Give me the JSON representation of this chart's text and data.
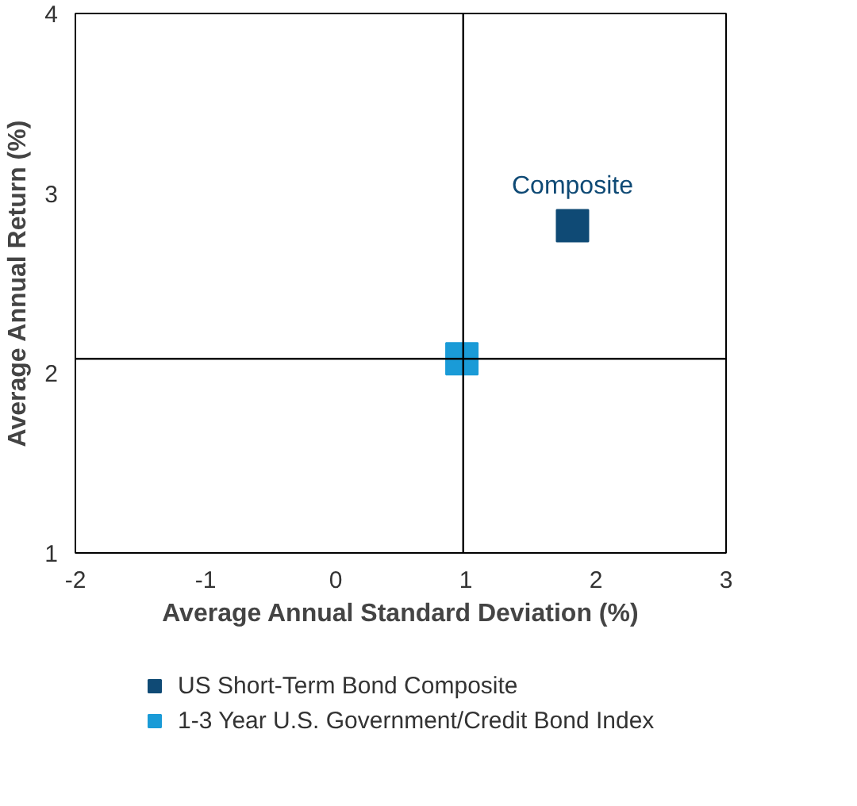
{
  "chart_data": {
    "type": "scatter",
    "xlabel": "Average Annual Standard Deviation (%)",
    "ylabel": "Average Annual Return (%)",
    "xlim": [
      -2,
      3
    ],
    "ylim": [
      1,
      4
    ],
    "xticks": [
      -2,
      -1,
      0,
      1,
      2,
      3
    ],
    "yticks": [
      1,
      2,
      3,
      4
    ],
    "series": [
      {
        "name": "US Short-Term Bond Composite",
        "color": "#0f4a75",
        "x": [
          1.82
        ],
        "values": [
          2.82
        ]
      },
      {
        "name": "1-3 Year U.S. Government/Credit Bond Index",
        "color": "#1a9bd7",
        "x": [
          0.97
        ],
        "values": [
          2.08
        ]
      }
    ],
    "ref_lines": [
      {
        "axis": "x",
        "value": 0.98,
        "color": "#000000"
      },
      {
        "axis": "y",
        "value": 2.08,
        "color": "#000000"
      }
    ],
    "annotations": [
      {
        "text": "Composite",
        "x": 1.82,
        "y": 2.82
      }
    ],
    "marker": "square",
    "grid": false,
    "legend": "bottom"
  }
}
